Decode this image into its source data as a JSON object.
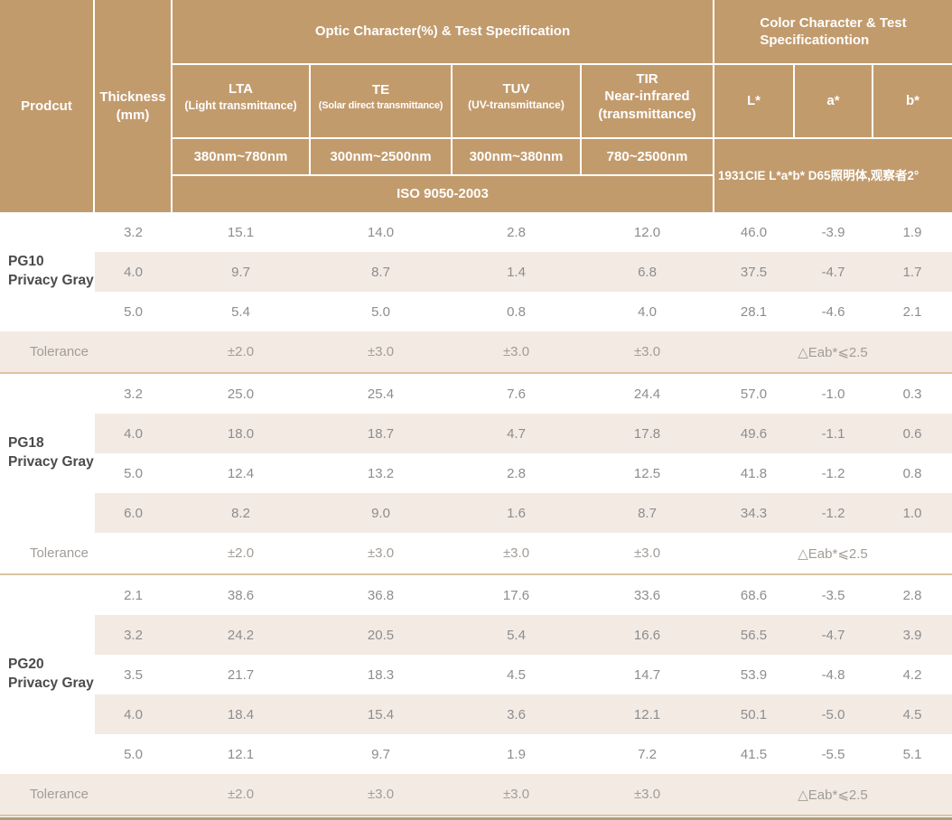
{
  "header": {
    "product_col": "Prodcut",
    "thickness_col": "Thickness\n(mm)",
    "optic_group": "Optic Character(%) & Test Specification",
    "color_group": "Color Character & Test\nSpecificationtion",
    "optic_columns": [
      {
        "abbr": "LTA",
        "desc": "(Light transmittance)",
        "range": "380nm~780nm"
      },
      {
        "abbr": "TE",
        "desc": "(Solar direct transmittance)",
        "range": "300nm~2500nm"
      },
      {
        "abbr": "TUV",
        "desc": "(UV-transmittance)",
        "range": "300nm~380nm"
      },
      {
        "abbr": "TIR",
        "desc": "Near-infrared\n(transmittance)",
        "range": "780~2500nm"
      }
    ],
    "color_columns": [
      "L*",
      "a*",
      "b*"
    ],
    "optic_standard": "ISO 9050-2003",
    "color_standard": "1931CIE L*a*b*  D65照明体,观察者2°"
  },
  "chart_data": {
    "type": "table",
    "columns": [
      "Prodcut",
      "Thickness (mm)",
      "LTA (Light transmittance) 380nm~780nm",
      "TE (Solar direct transmittance) 300nm~2500nm",
      "TUV (UV-transmittance) 300nm~380nm",
      "TIR Near-infrared (transmittance) 780~2500nm",
      "L*",
      "a*",
      "b*"
    ],
    "sections": [
      {
        "product": "PG10\nPrivacy Gray",
        "rows": [
          {
            "thickness": "3.2",
            "values": [
              "15.1",
              "14.0",
              "2.8",
              "12.0",
              "46.0",
              "-3.9",
              "1.9"
            ]
          },
          {
            "thickness": "4.0",
            "values": [
              "9.7",
              "8.7",
              "1.4",
              "6.8",
              "37.5",
              "-4.7",
              "1.7"
            ]
          },
          {
            "thickness": "5.0",
            "values": [
              "5.4",
              "5.0",
              "0.8",
              "4.0",
              "28.1",
              "-4.6",
              "2.1"
            ]
          }
        ],
        "tolerance": {
          "label": "Tolerance",
          "values": [
            "±2.0",
            "±3.0",
            "±3.0",
            "±3.0"
          ],
          "color_tolerance": "△Eab*⩽2.5"
        }
      },
      {
        "product": "PG18\nPrivacy Gray",
        "rows": [
          {
            "thickness": "3.2",
            "values": [
              "25.0",
              "25.4",
              "7.6",
              "24.4",
              "57.0",
              "-1.0",
              "0.3"
            ]
          },
          {
            "thickness": "4.0",
            "values": [
              "18.0",
              "18.7",
              "4.7",
              "17.8",
              "49.6",
              "-1.1",
              "0.6"
            ]
          },
          {
            "thickness": "5.0",
            "values": [
              "12.4",
              "13.2",
              "2.8",
              "12.5",
              "41.8",
              "-1.2",
              "0.8"
            ]
          },
          {
            "thickness": "6.0",
            "values": [
              "8.2",
              "9.0",
              "1.6",
              "8.7",
              "34.3",
              "-1.2",
              "1.0"
            ]
          }
        ],
        "tolerance": {
          "label": "Tolerance",
          "values": [
            "±2.0",
            "±3.0",
            "±3.0",
            "±3.0"
          ],
          "color_tolerance": "△Eab*⩽2.5"
        }
      },
      {
        "product": "PG20\nPrivacy Gray",
        "rows": [
          {
            "thickness": "2.1",
            "values": [
              "38.6",
              "36.8",
              "17.6",
              "33.6",
              "68.6",
              "-3.5",
              "2.8"
            ]
          },
          {
            "thickness": "3.2",
            "values": [
              "24.2",
              "20.5",
              "5.4",
              "16.6",
              "56.5",
              "-4.7",
              "3.9"
            ]
          },
          {
            "thickness": "3.5",
            "values": [
              "21.7",
              "18.3",
              "4.5",
              "14.7",
              "53.9",
              "-4.8",
              "4.2"
            ]
          },
          {
            "thickness": "4.0",
            "values": [
              "18.4",
              "15.4",
              "3.6",
              "12.1",
              "50.1",
              "-5.0",
              "4.5"
            ]
          },
          {
            "thickness": "5.0",
            "values": [
              "12.1",
              "9.7",
              "1.9",
              "7.2",
              "41.5",
              "-5.5",
              "5.1"
            ]
          }
        ],
        "tolerance": {
          "label": "Tolerance",
          "values": [
            "±2.0",
            "±3.0",
            "±3.0",
            "±3.0"
          ],
          "color_tolerance": "△Eab*⩽2.5"
        }
      }
    ]
  },
  "colors": {
    "header_bg": "#c29b6d",
    "header_text": "#ffffff",
    "stripe_bg": "#f3eae4",
    "divider": "#dcc3a2",
    "bottom_rule": "#ab9f79",
    "data_text": "#8d8d8d",
    "product_text": "#4a4a4a",
    "tolerance_text": "#a29c96"
  }
}
